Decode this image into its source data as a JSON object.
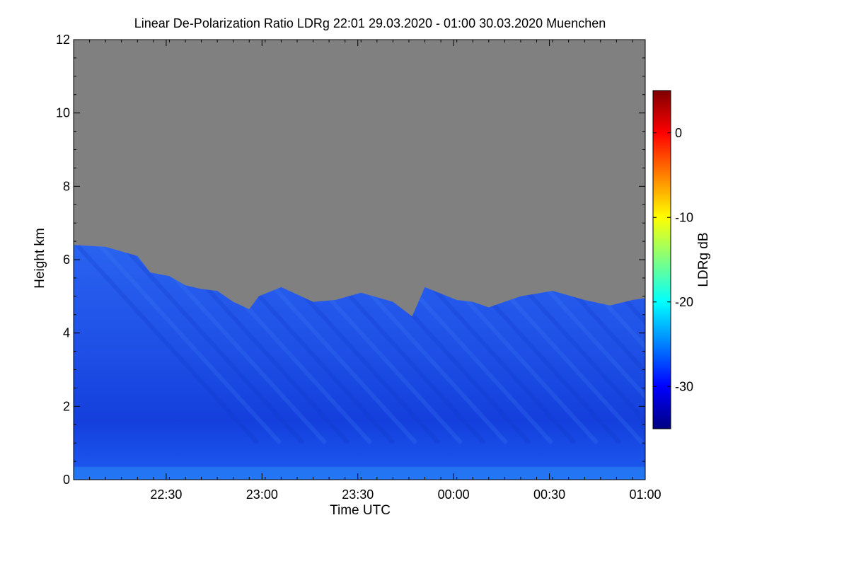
{
  "chart_data": {
    "type": "heatmap",
    "title": "Linear De-Polarization Ratio LDRg   22:01 29.03.2020 - 01:00 30.03.2020 Muenchen",
    "xlabel": "Time UTC",
    "ylabel": "Height km",
    "x_ticks": [
      "22:30",
      "23:00",
      "23:30",
      "00:00",
      "00:30",
      "01:00"
    ],
    "x_tick_minutes": [
      29,
      59,
      89,
      119,
      149,
      179
    ],
    "xlim_minutes": [
      0,
      179
    ],
    "y_ticks": [
      0,
      2,
      4,
      6,
      8,
      10,
      12
    ],
    "ylim": [
      0,
      12
    ],
    "colorbar": {
      "label": "LDRg dB",
      "ticks": [
        0,
        -10,
        -20,
        -30
      ],
      "range": [
        -35,
        5
      ],
      "colors": [
        "#000080",
        "#0000ff",
        "#0080ff",
        "#00ffff",
        "#80ff80",
        "#ffff00",
        "#ff8000",
        "#ff0000",
        "#800000"
      ]
    },
    "no_signal_color": "#808080",
    "data_color": "#1e4fe6",
    "signal_top_km": [
      {
        "t": 0,
        "h": 6.4
      },
      {
        "t": 10,
        "h": 6.35
      },
      {
        "t": 20,
        "h": 6.1
      },
      {
        "t": 24,
        "h": 5.65
      },
      {
        "t": 30,
        "h": 5.55
      },
      {
        "t": 35,
        "h": 5.3
      },
      {
        "t": 40,
        "h": 5.2
      },
      {
        "t": 45,
        "h": 5.15
      },
      {
        "t": 50,
        "h": 4.85
      },
      {
        "t": 55,
        "h": 4.65
      },
      {
        "t": 58,
        "h": 5.0
      },
      {
        "t": 65,
        "h": 5.25
      },
      {
        "t": 75,
        "h": 4.85
      },
      {
        "t": 82,
        "h": 4.9
      },
      {
        "t": 90,
        "h": 5.1
      },
      {
        "t": 100,
        "h": 4.85
      },
      {
        "t": 106,
        "h": 4.45
      },
      {
        "t": 110,
        "h": 5.25
      },
      {
        "t": 120,
        "h": 4.9
      },
      {
        "t": 125,
        "h": 4.85
      },
      {
        "t": 130,
        "h": 4.7
      },
      {
        "t": 140,
        "h": 5.0
      },
      {
        "t": 150,
        "h": 5.15
      },
      {
        "t": 160,
        "h": 4.9
      },
      {
        "t": 168,
        "h": 4.75
      },
      {
        "t": 175,
        "h": 4.9
      },
      {
        "t": 179,
        "h": 4.95
      }
    ]
  }
}
